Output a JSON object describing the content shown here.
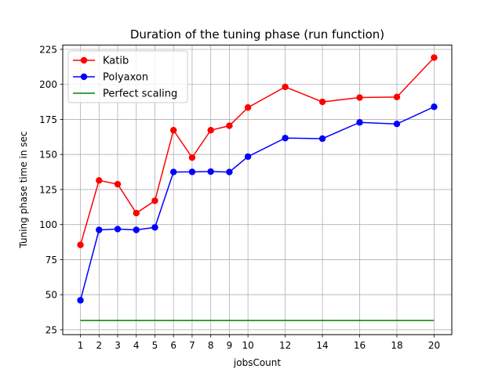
{
  "chart_data": {
    "type": "line",
    "title": "Duration of the tuning phase (run function)",
    "xlabel": "jobsCount",
    "ylabel": "Tuning phase time in sec",
    "x": [
      1,
      2,
      3,
      4,
      5,
      6,
      7,
      8,
      9,
      10,
      12,
      14,
      16,
      18,
      20
    ],
    "xticks": [
      1,
      2,
      3,
      4,
      5,
      6,
      7,
      8,
      9,
      10,
      12,
      14,
      16,
      18,
      20
    ],
    "yticks": [
      25,
      50,
      75,
      100,
      125,
      150,
      175,
      200,
      225
    ],
    "xlim": [
      0.05,
      20.95
    ],
    "ylim": [
      21.5,
      228
    ],
    "grid": true,
    "legend_position": "top-left",
    "series": [
      {
        "name": "Katib",
        "color": "#ff0000",
        "marker": "circle",
        "values": [
          85.5,
          131.5,
          128.8,
          108.2,
          117.0,
          167.3,
          147.8,
          167.3,
          170.5,
          183.5,
          198.2,
          187.5,
          190.6,
          191.0,
          219.1
        ]
      },
      {
        "name": "Polyaxon",
        "color": "#0000ff",
        "marker": "circle",
        "values": [
          46.0,
          96.2,
          96.8,
          96.2,
          98.0,
          137.5,
          137.6,
          137.8,
          137.5,
          148.5,
          161.7,
          161.3,
          172.9,
          171.8,
          184.0
        ]
      },
      {
        "name": "Perfect scaling",
        "color": "#008000",
        "marker": "none",
        "values": [
          31.6,
          31.6,
          31.6,
          31.6,
          31.6,
          31.6,
          31.6,
          31.6,
          31.6,
          31.6,
          31.6,
          31.6,
          31.6,
          31.6,
          31.6
        ]
      }
    ]
  }
}
